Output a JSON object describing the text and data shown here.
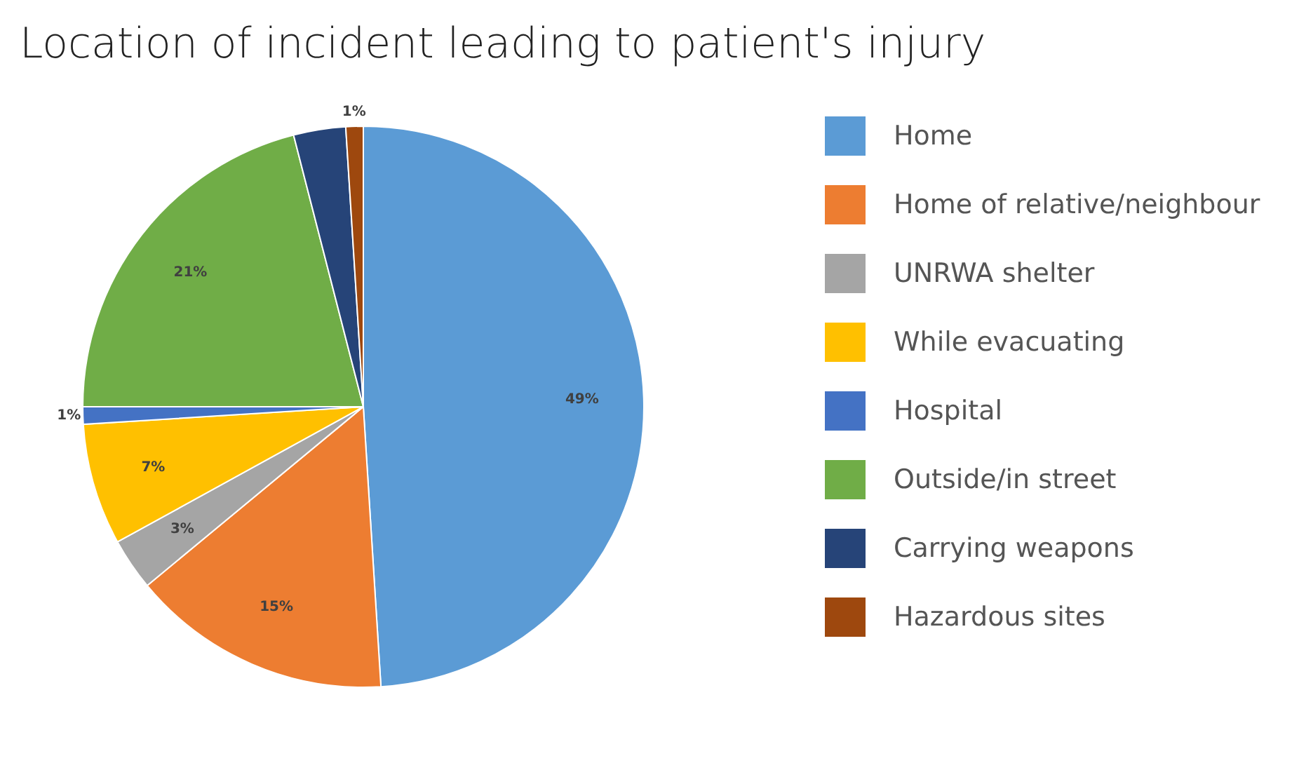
{
  "chart_data": {
    "type": "pie",
    "title": "Location of incident leading to patient's injury",
    "categories": [
      "Home",
      "Home of relative/neighbour",
      "UNRWA shelter",
      "While evacuating",
      "Hospital",
      "Outside/in street",
      "Carrying weapons",
      "Hazardous sites"
    ],
    "values": [
      49,
      15,
      3,
      7,
      1,
      21,
      3,
      1
    ],
    "colors": [
      "#5b9bd5",
      "#ed7d31",
      "#a5a5a5",
      "#ffc000",
      "#4472c4",
      "#70ad47",
      "#264478",
      "#9e480e"
    ],
    "value_labels": [
      "49%",
      "15%",
      "3%",
      "7%",
      "1%",
      "21%",
      null,
      "1%"
    ],
    "legend": "right"
  }
}
